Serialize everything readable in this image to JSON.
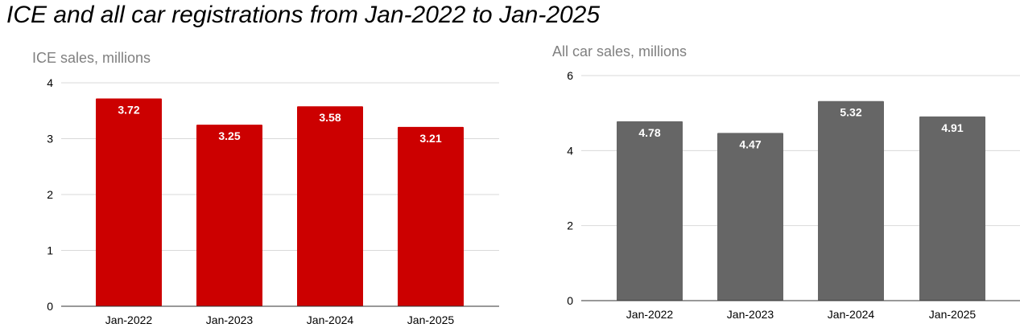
{
  "title": "ICE and all car registrations from Jan-2022 to Jan-2025",
  "colors": {
    "ice_bar": "#cc0000",
    "all_bar": "#666666",
    "grid": "#d9d9d9",
    "axis_label": "#808080",
    "tick": "#000000",
    "value_label": "#ffffff"
  },
  "chart_data": [
    {
      "type": "bar",
      "ylabel": "ICE sales, millions",
      "categories": [
        "Jan-2022",
        "Jan-2023",
        "Jan-2024",
        "Jan-2025"
      ],
      "values": [
        3.72,
        3.25,
        3.58,
        3.21
      ],
      "value_labels": [
        "3.72",
        "3.25",
        "3.58",
        "3.21"
      ],
      "yticks": [
        0,
        1,
        2,
        3,
        4
      ],
      "ylim": [
        0,
        4
      ],
      "grid": true,
      "legend": "none",
      "color": "#cc0000"
    },
    {
      "type": "bar",
      "ylabel": "All car sales, millions",
      "categories": [
        "Jan-2022",
        "Jan-2023",
        "Jan-2024",
        "Jan-2025"
      ],
      "values": [
        4.78,
        4.47,
        5.32,
        4.91
      ],
      "value_labels": [
        "4.78",
        "4.47",
        "5.32",
        "4.91"
      ],
      "yticks": [
        0,
        2,
        4,
        6
      ],
      "ylim": [
        0,
        6
      ],
      "grid": true,
      "legend": "none",
      "color": "#666666"
    }
  ]
}
